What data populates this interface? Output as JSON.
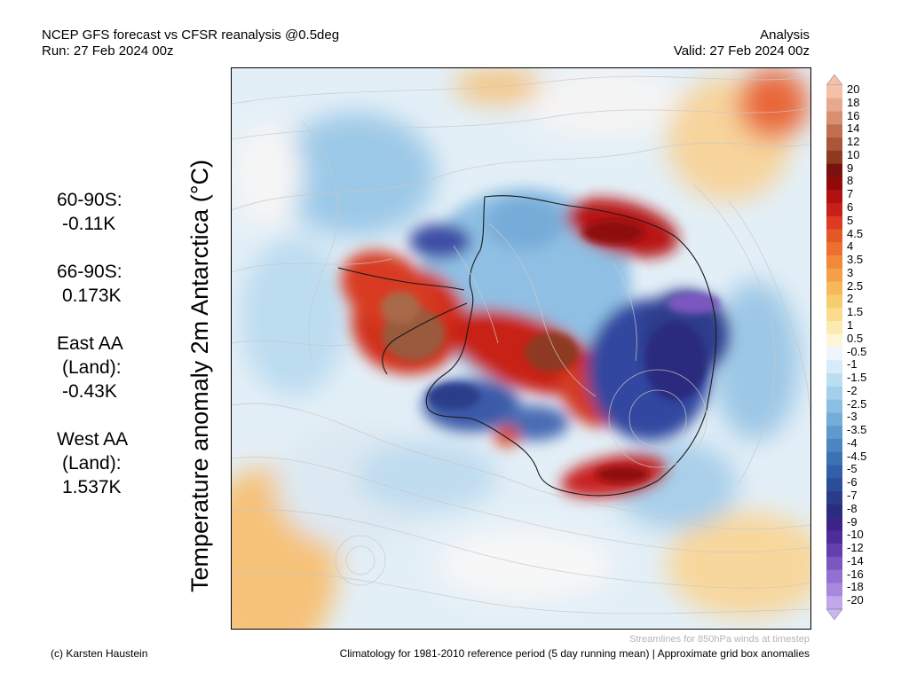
{
  "header": {
    "title": "NCEP GFS forecast vs CFSR reanalysis @0.5deg",
    "run": "Run: 27 Feb 2024 00z",
    "mode": "Analysis",
    "valid": "Valid: 27 Feb 2024 00z"
  },
  "y_label": "Temperature anomaly 2m Antarctica (°C)",
  "stats": [
    {
      "lines": [
        "60-90S:"
      ],
      "value": "-0.11K"
    },
    {
      "lines": [
        "66-90S:"
      ],
      "value": "0.173K"
    },
    {
      "lines": [
        "East AA",
        "(Land):"
      ],
      "value": "-0.43K"
    },
    {
      "lines": [
        "West AA",
        "(Land):"
      ],
      "value": "1.537K"
    }
  ],
  "colorbar": {
    "labels": [
      "20",
      "18",
      "16",
      "14",
      "12",
      "10",
      "9",
      "8",
      "7",
      "6",
      "5",
      "4.5",
      "4",
      "3.5",
      "3",
      "2.5",
      "2",
      "1.5",
      "1",
      "0.5",
      "-0.5",
      "-1",
      "-1.5",
      "-2",
      "-2.5",
      "-3",
      "-3.5",
      "-4",
      "-4.5",
      "-5",
      "-6",
      "-7",
      "-8",
      "-9",
      "-10",
      "-12",
      "-14",
      "-16",
      "-18",
      "-20"
    ],
    "colors": [
      "#f4c0a8",
      "#e8a890",
      "#d89070",
      "#c07050",
      "#a85838",
      "#8c3a20",
      "#7a1010",
      "#900a0a",
      "#b01212",
      "#c82018",
      "#dc3a22",
      "#e45828",
      "#ec7030",
      "#f08a3a",
      "#f4a048",
      "#f6b858",
      "#f8cc70",
      "#fadc8c",
      "#fceab0",
      "#fdf6d8",
      "#eef6fc",
      "#d6ecf8",
      "#bcdef2",
      "#a4d0ec",
      "#8cc0e2",
      "#74aed8",
      "#5e9ace",
      "#4a86c2",
      "#3c72b4",
      "#3260a6",
      "#2c4e98",
      "#2a3c8a",
      "#2a2c7e",
      "#3a2488",
      "#4e2c9a",
      "#6440ae",
      "#7a58c0",
      "#9070d0",
      "#a888dc",
      "#c0a8ea"
    ],
    "top_arrow_color": "#f4c0a8",
    "bottom_arrow_color": "#c8b8f0"
  },
  "footer": {
    "credit": "(c) Karsten Haustein",
    "streamlines": "Streamlines for 850hPa winds at timestep",
    "climatology": "Climatology for 1981-2010 reference period (5 day running mean) | Approximate grid box anomalies"
  }
}
